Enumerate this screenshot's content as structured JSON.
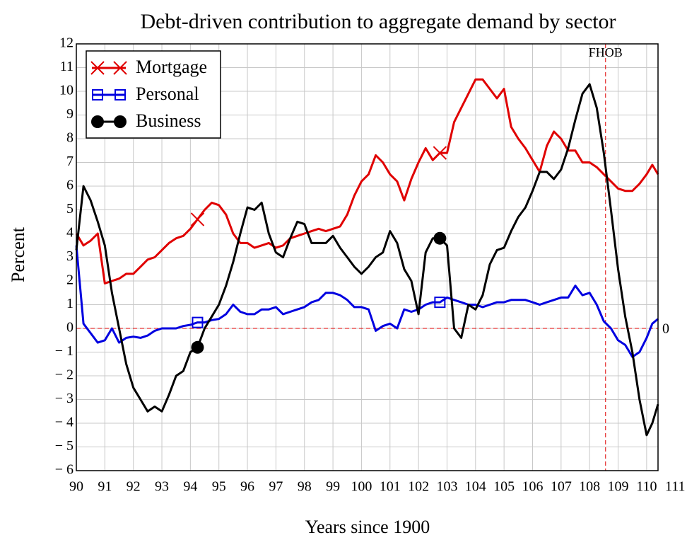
{
  "chart_data": {
    "type": "line",
    "title": "Debt-driven contribution to aggregate demand by sector",
    "x_label": "Years since 1900",
    "y_label": "Percent",
    "x": [
      90,
      90.25,
      90.5,
      90.75,
      91,
      91.25,
      91.5,
      91.75,
      92,
      92.25,
      92.5,
      92.75,
      93,
      93.25,
      93.5,
      93.75,
      94,
      94.25,
      94.5,
      94.75,
      95,
      95.25,
      95.5,
      95.75,
      96,
      96.25,
      96.5,
      96.75,
      97,
      97.25,
      97.5,
      97.75,
      98,
      98.25,
      98.5,
      98.75,
      99,
      99.25,
      99.5,
      99.75,
      100,
      100.25,
      100.5,
      100.75,
      101,
      101.25,
      101.5,
      101.75,
      102,
      102.25,
      102.5,
      102.75,
      103,
      103.25,
      103.5,
      103.75,
      104,
      104.25,
      104.5,
      104.75,
      105,
      105.25,
      105.5,
      105.75,
      106,
      106.25,
      106.5,
      106.75,
      107,
      107.25,
      107.5,
      107.75,
      108,
      108.25,
      108.5,
      108.75,
      109,
      109.25,
      109.5,
      109.75,
      110,
      110.2,
      110.4
    ],
    "series": [
      {
        "name": "Mortgage",
        "color": "#e00000",
        "marker": "x",
        "marker_x": [
          94.25,
          102.75
        ],
        "values": [
          4.0,
          3.5,
          3.7,
          4.0,
          1.9,
          2.0,
          2.1,
          2.3,
          2.3,
          2.6,
          2.9,
          3.0,
          3.3,
          3.6,
          3.8,
          3.9,
          4.2,
          4.6,
          5.0,
          5.3,
          5.2,
          4.8,
          4.0,
          3.6,
          3.6,
          3.4,
          3.5,
          3.6,
          3.4,
          3.5,
          3.8,
          3.9,
          4.0,
          4.1,
          4.2,
          4.1,
          4.2,
          4.3,
          4.8,
          5.6,
          6.2,
          6.5,
          7.3,
          7.0,
          6.5,
          6.2,
          5.4,
          6.3,
          7.0,
          7.6,
          7.1,
          7.4,
          7.4,
          8.7,
          9.3,
          9.9,
          10.5,
          10.5,
          10.1,
          9.7,
          10.1,
          8.5,
          8.0,
          7.6,
          7.1,
          6.6,
          7.7,
          8.3,
          8.0,
          7.5,
          7.5,
          7.0,
          7.0,
          6.8,
          6.5,
          6.2,
          5.9,
          5.8,
          5.8,
          6.1,
          6.5,
          6.9,
          6.5
        ]
      },
      {
        "name": "Personal",
        "color": "#0000e0",
        "marker": "square",
        "marker_x": [
          94.25,
          102.75
        ],
        "values": [
          3.5,
          0.2,
          -0.2,
          -0.6,
          -0.5,
          0.0,
          -0.6,
          -0.4,
          -0.35,
          -0.4,
          -0.3,
          -0.1,
          0.0,
          0.0,
          0.0,
          0.1,
          0.15,
          0.25,
          0.25,
          0.35,
          0.4,
          0.6,
          1.0,
          0.7,
          0.6,
          0.6,
          0.8,
          0.8,
          0.9,
          0.6,
          0.7,
          0.8,
          0.9,
          1.1,
          1.2,
          1.5,
          1.5,
          1.4,
          1.2,
          0.9,
          0.9,
          0.8,
          -0.1,
          0.1,
          0.2,
          0.0,
          0.8,
          0.7,
          0.8,
          1.0,
          1.1,
          1.1,
          1.3,
          1.2,
          1.1,
          1.0,
          1.0,
          0.9,
          1.0,
          1.1,
          1.1,
          1.2,
          1.2,
          1.2,
          1.1,
          1.0,
          1.1,
          1.2,
          1.3,
          1.3,
          1.8,
          1.4,
          1.5,
          1.0,
          0.3,
          0.0,
          -0.5,
          -0.7,
          -1.2,
          -1.0,
          -0.4,
          0.2,
          0.4
        ]
      },
      {
        "name": "Business",
        "color": "#000000",
        "marker": "circle",
        "marker_x": [
          94.25,
          102.75
        ],
        "values": [
          3.3,
          6.0,
          5.4,
          4.5,
          3.5,
          1.5,
          0.0,
          -1.5,
          -2.5,
          -3.0,
          -3.5,
          -3.3,
          -3.5,
          -2.8,
          -2.0,
          -1.8,
          -1.0,
          -0.8,
          0.0,
          0.5,
          1.0,
          1.8,
          2.8,
          4.0,
          5.1,
          5.0,
          5.3,
          4.0,
          3.2,
          3.0,
          3.8,
          4.5,
          4.4,
          3.6,
          3.6,
          3.6,
          3.9,
          3.4,
          3.0,
          2.6,
          2.3,
          2.6,
          3.0,
          3.2,
          4.1,
          3.6,
          2.5,
          2.0,
          0.6,
          3.2,
          3.8,
          3.8,
          3.5,
          0.0,
          -0.4,
          1.0,
          0.8,
          1.4,
          2.7,
          3.3,
          3.4,
          4.1,
          4.7,
          5.1,
          5.8,
          6.6,
          6.6,
          6.3,
          6.7,
          7.6,
          8.8,
          9.9,
          10.3,
          9.3,
          7.4,
          5.0,
          2.5,
          0.5,
          -1.0,
          -3.0,
          -4.5,
          -4.0,
          -3.2
        ]
      }
    ],
    "xlim": [
      90,
      110.4
    ],
    "xticks": [
      90,
      91,
      92,
      93,
      94,
      95,
      96,
      97,
      98,
      99,
      100,
      101,
      102,
      103,
      104,
      105,
      106,
      107,
      108,
      109,
      110,
      111
    ],
    "ylim": [
      -6,
      12
    ],
    "yticks": [
      {
        "value": -6,
        "label": "− 6"
      },
      {
        "value": -5,
        "label": "− 5"
      },
      {
        "value": -4,
        "label": "− 4"
      },
      {
        "value": -3,
        "label": "− 3"
      },
      {
        "value": -2,
        "label": "− 2"
      },
      {
        "value": -1,
        "label": "− 1"
      },
      0,
      1,
      2,
      3,
      4,
      5,
      6,
      7,
      8,
      9,
      10,
      11,
      12
    ],
    "grid": true,
    "legend": "top-left",
    "vline": {
      "x": 108.56,
      "label": "FHOB",
      "color": "#e00000"
    },
    "hline": {
      "y": 0,
      "color": "#e00000"
    }
  }
}
